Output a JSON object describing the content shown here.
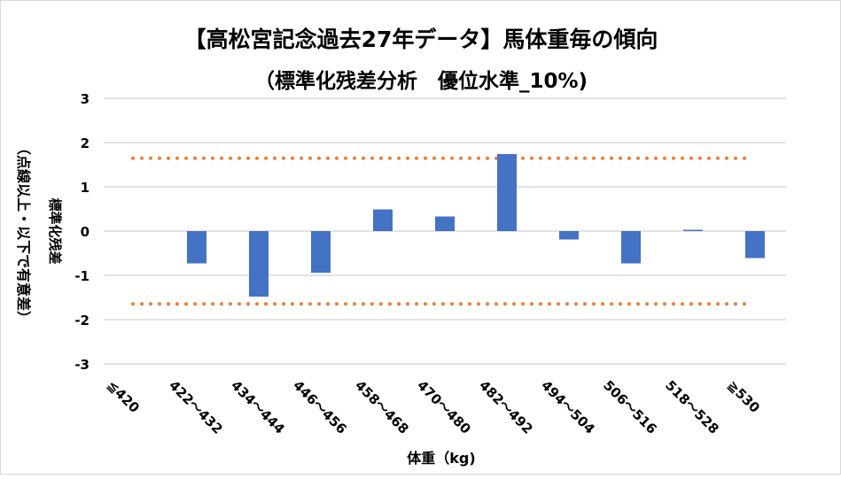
{
  "chart_data": {
    "type": "bar",
    "title": "【高松宮記念過去27年データ】馬体重毎の傾向",
    "subtitle": "（標準化残差分析　優位水準_10%)",
    "xlabel": "体重（kg)",
    "ylabel": "標準化残差",
    "ylabel_note": "（点線以上・以下で有意差）",
    "categories": [
      "≦420",
      "422～432",
      "434～444",
      "446～456",
      "458～468",
      "470～480",
      "482～492",
      "494～504",
      "506～516",
      "518～528",
      "≧530"
    ],
    "values": [
      0,
      -0.73,
      -1.48,
      -0.94,
      0.49,
      0.33,
      1.74,
      -0.19,
      -0.73,
      0.03,
      -0.61
    ],
    "ylim": [
      -3,
      3
    ],
    "yticks": [
      "3",
      "2",
      "1",
      "0",
      "-1",
      "-2",
      "-3"
    ],
    "ytick_values": [
      3,
      2,
      1,
      0,
      -1,
      -2,
      -3
    ],
    "thresholds": [
      1.645,
      -1.645
    ],
    "grid": true,
    "colors": {
      "bar": "#4472c4",
      "threshold": "#ed7d31",
      "grid": "#d9d9d9"
    }
  }
}
